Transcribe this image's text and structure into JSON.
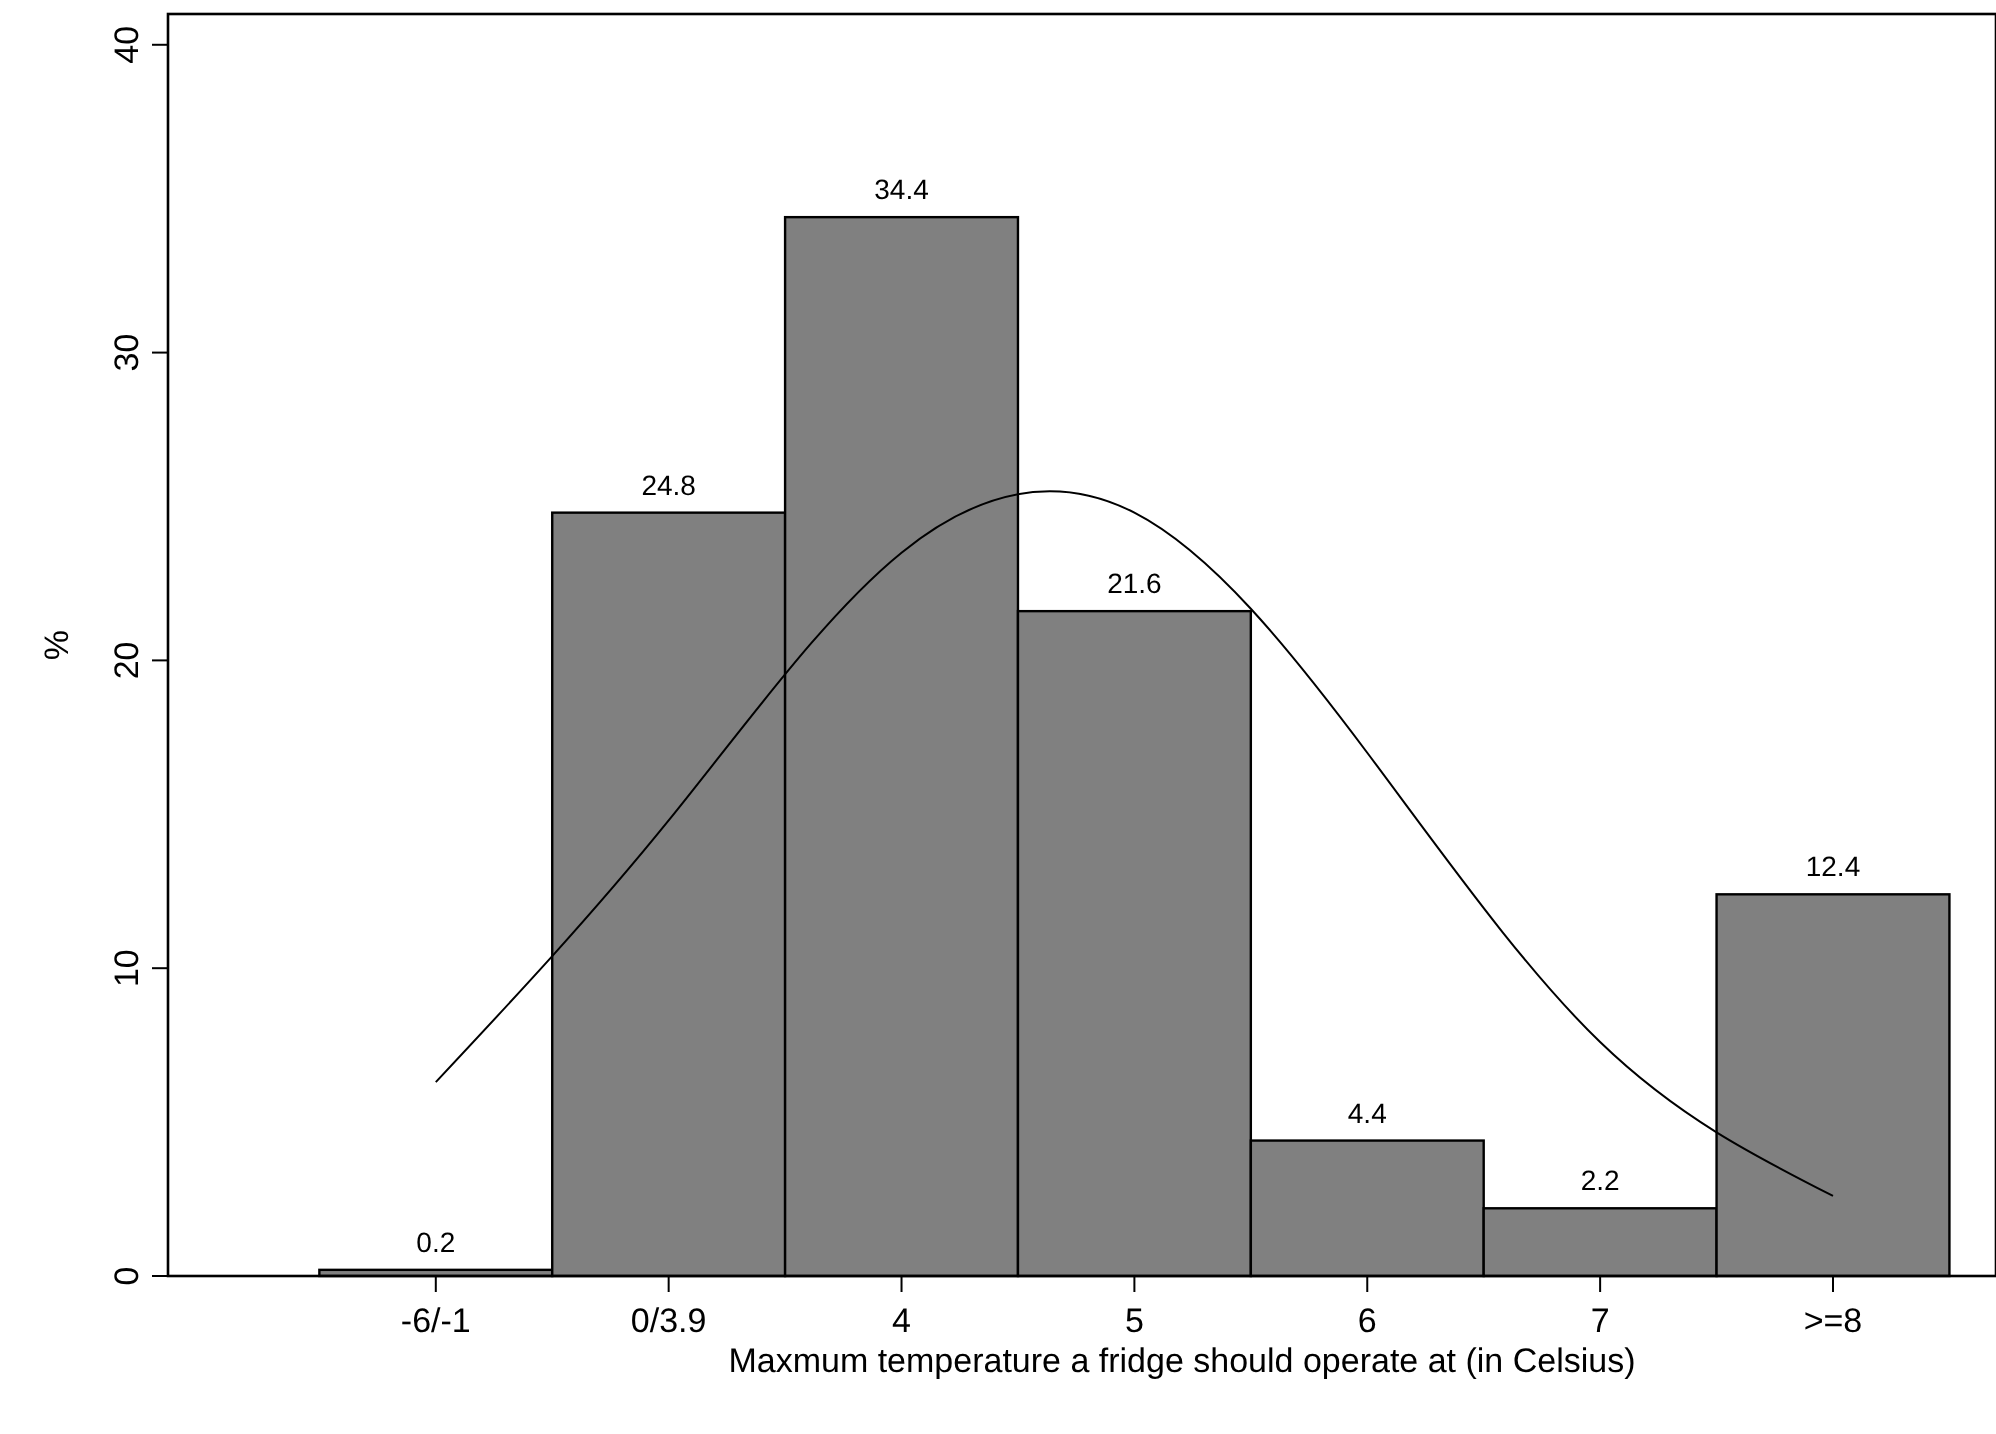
{
  "chart_data": {
    "type": "bar",
    "xlabel": "Maxmum temperature a fridge should operate at (in Celsius)",
    "ylabel": "%",
    "categories": [
      "-6/-1",
      "0/3.9",
      "4",
      "5",
      "6",
      "7",
      ">=8"
    ],
    "ylim": [
      0,
      41
    ],
    "yticks": [
      0,
      10,
      20,
      30,
      40
    ],
    "series": [
      {
        "color": "#808080",
        "values": [
          0.2,
          24.8,
          34.4,
          21.6,
          4.4,
          2.2,
          12.4
        ],
        "value_labels": [
          "0.2",
          "24.8",
          "34.4",
          "21.6",
          "4.4",
          "2.2",
          "12.4"
        ]
      },
      {
        "type": "line",
        "color": "#000000",
        "values": [
          6.3,
          14.8,
          23.5,
          24.8,
          17.0,
          7.6,
          2.6
        ]
      }
    ]
  }
}
